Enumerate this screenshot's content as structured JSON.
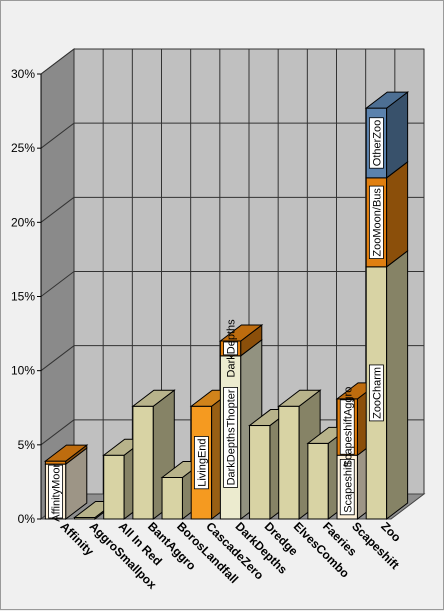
{
  "chart_data": {
    "type": "bar",
    "stacked": true,
    "three_d": true,
    "categories": [
      "Affinity",
      "AggroSmallpox",
      "All In Red",
      "BantAggro",
      "BorosLandfall",
      "CascadeZero",
      "DarkDepths",
      "Dredge",
      "ElvesCombo",
      "Faeries",
      "Scapeshift",
      "Zoo"
    ],
    "ylim": [
      0,
      30
    ],
    "yticks": [
      "0%",
      "5%",
      "10%",
      "15%",
      "20%",
      "25%",
      "30%"
    ],
    "grid": true,
    "legend": "none",
    "segments": [
      {
        "category": "Affinity",
        "label": "AffinityMoon",
        "value": 3.7,
        "color": "#fdf0d8"
      },
      {
        "category": "Affinity",
        "label": "",
        "value": 0.2,
        "color": "#e07f10"
      },
      {
        "category": "AggroSmallpox",
        "label": "",
        "value": 0.1,
        "color": "#d8d3a4"
      },
      {
        "category": "All In Red",
        "label": "",
        "value": 4.3,
        "color": "#d8d3a4"
      },
      {
        "category": "BantAggro",
        "label": "",
        "value": 7.6,
        "color": "#d8d3a4"
      },
      {
        "category": "BorosLandfall",
        "label": "",
        "value": 2.8,
        "color": "#d8d3a4"
      },
      {
        "category": "CascadeZero",
        "label": "LivingEnd",
        "value": 7.6,
        "color": "#f59a20"
      },
      {
        "category": "DarkDepths",
        "label": "DarkDepthsThopter",
        "value": 11.0,
        "color": "#ecebcf"
      },
      {
        "category": "DarkDepths",
        "label": "DarkDepths",
        "value": 1.0,
        "color": "#e07f10"
      },
      {
        "category": "Dredge",
        "label": "",
        "value": 6.3,
        "color": "#d8d3a4"
      },
      {
        "category": "ElvesCombo",
        "label": "",
        "value": 7.6,
        "color": "#d8d3a4"
      },
      {
        "category": "Faeries",
        "label": "",
        "value": 5.1,
        "color": "#d8d3a4"
      },
      {
        "category": "Scapeshift",
        "label": "Scapeshift",
        "value": 4.3,
        "color": "#fdf0d8"
      },
      {
        "category": "Scapeshift",
        "label": "ScapeshiftAggro",
        "value": 3.8,
        "color": "#e07f10"
      },
      {
        "category": "Zoo",
        "label": "ZooCharm",
        "value": 17.0,
        "color": "#d8d3a4"
      },
      {
        "category": "Zoo",
        "label": "ZooMoon/Bus",
        "value": 6.0,
        "color": "#e07f10"
      },
      {
        "category": "Zoo",
        "label": "OtherZoo",
        "value": 4.7,
        "color": "#5b82ad"
      }
    ]
  }
}
